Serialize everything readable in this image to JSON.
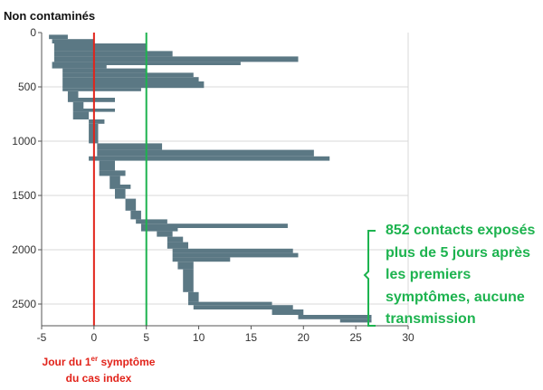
{
  "chart_data": {
    "type": "bar",
    "orientation": "horizontal-waterfall",
    "title": "",
    "ylabel": "Non contaminés",
    "xlabel_parts": [
      "Jour du 1",
      "er",
      " symptôme",
      "du cas index"
    ],
    "xlim": [
      -5,
      30
    ],
    "ylim": [
      0,
      2700
    ],
    "y_inverted": true,
    "xticks": [
      -5,
      0,
      5,
      10,
      15,
      20,
      25,
      30
    ],
    "yticks": [
      0,
      500,
      1000,
      1500,
      2000,
      2500
    ],
    "grid": "horizontal",
    "bar_color": "#5b7884",
    "reference_lines": [
      {
        "name": "index-symptom-day",
        "x": 0,
        "color": "#e2231a"
      },
      {
        "name": "five-day-threshold",
        "x": 5,
        "color": "#1db34f"
      }
    ],
    "bars": [
      {
        "y0": 20,
        "y1": 60,
        "x0": -4.3,
        "x1": -2.5
      },
      {
        "y0": 60,
        "y1": 100,
        "x0": -4.0,
        "x1": 0.0
      },
      {
        "y0": 100,
        "y1": 170,
        "x0": -3.8,
        "x1": 5.0
      },
      {
        "y0": 170,
        "y1": 220,
        "x0": -3.8,
        "x1": 7.5
      },
      {
        "y0": 220,
        "y1": 270,
        "x0": -3.8,
        "x1": 19.5
      },
      {
        "y0": 270,
        "y1": 300,
        "x0": -4.0,
        "x1": 14.0
      },
      {
        "y0": 300,
        "y1": 330,
        "x0": -4.0,
        "x1": 1.2
      },
      {
        "y0": 330,
        "y1": 370,
        "x0": -3.0,
        "x1": 5.0
      },
      {
        "y0": 370,
        "y1": 410,
        "x0": -3.0,
        "x1": 9.5
      },
      {
        "y0": 410,
        "y1": 450,
        "x0": -3.0,
        "x1": 10.0
      },
      {
        "y0": 450,
        "y1": 510,
        "x0": -3.0,
        "x1": 10.5
      },
      {
        "y0": 510,
        "y1": 540,
        "x0": -3.0,
        "x1": 4.5
      },
      {
        "y0": 540,
        "y1": 600,
        "x0": -2.5,
        "x1": -1.5
      },
      {
        "y0": 600,
        "y1": 640,
        "x0": -2.5,
        "x1": 2.0
      },
      {
        "y0": 640,
        "y1": 700,
        "x0": -2.0,
        "x1": -1.0
      },
      {
        "y0": 700,
        "y1": 730,
        "x0": -2.0,
        "x1": 2.0
      },
      {
        "y0": 730,
        "y1": 800,
        "x0": -2.0,
        "x1": -0.5
      },
      {
        "y0": 800,
        "y1": 840,
        "x0": -0.5,
        "x1": 1.0
      },
      {
        "y0": 840,
        "y1": 1020,
        "x0": -0.5,
        "x1": 0.4
      },
      {
        "y0": 1020,
        "y1": 1080,
        "x0": 0.3,
        "x1": 6.5
      },
      {
        "y0": 1080,
        "y1": 1140,
        "x0": 0.3,
        "x1": 21.0
      },
      {
        "y0": 1140,
        "y1": 1180,
        "x0": -0.5,
        "x1": 22.5
      },
      {
        "y0": 1180,
        "y1": 1270,
        "x0": 0.5,
        "x1": 2.0
      },
      {
        "y0": 1270,
        "y1": 1320,
        "x0": 0.5,
        "x1": 3.0
      },
      {
        "y0": 1320,
        "y1": 1400,
        "x0": 1.5,
        "x1": 2.5
      },
      {
        "y0": 1400,
        "y1": 1440,
        "x0": 1.5,
        "x1": 3.5
      },
      {
        "y0": 1440,
        "y1": 1530,
        "x0": 2.0,
        "x1": 3.0
      },
      {
        "y0": 1530,
        "y1": 1640,
        "x0": 3.0,
        "x1": 4.0
      },
      {
        "y0": 1640,
        "y1": 1720,
        "x0": 3.5,
        "x1": 4.5
      },
      {
        "y0": 1720,
        "y1": 1760,
        "x0": 4.0,
        "x1": 7.0
      },
      {
        "y0": 1760,
        "y1": 1800,
        "x0": 4.5,
        "x1": 18.5
      },
      {
        "y0": 1800,
        "y1": 1830,
        "x0": 4.5,
        "x1": 8.0
      },
      {
        "y0": 1830,
        "y1": 1880,
        "x0": 6.0,
        "x1": 7.5
      },
      {
        "y0": 1880,
        "y1": 1930,
        "x0": 7.0,
        "x1": 8.5
      },
      {
        "y0": 1930,
        "y1": 1990,
        "x0": 7.0,
        "x1": 9.0
      },
      {
        "y0": 1990,
        "y1": 2030,
        "x0": 7.5,
        "x1": 19.0
      },
      {
        "y0": 2030,
        "y1": 2070,
        "x0": 7.5,
        "x1": 19.5
      },
      {
        "y0": 2070,
        "y1": 2110,
        "x0": 7.5,
        "x1": 13.0
      },
      {
        "y0": 2110,
        "y1": 2180,
        "x0": 8.0,
        "x1": 9.5
      },
      {
        "y0": 2180,
        "y1": 2390,
        "x0": 8.5,
        "x1": 9.5
      },
      {
        "y0": 2390,
        "y1": 2480,
        "x0": 9.0,
        "x1": 10.0
      },
      {
        "y0": 2480,
        "y1": 2510,
        "x0": 9.0,
        "x1": 17.0
      },
      {
        "y0": 2510,
        "y1": 2550,
        "x0": 9.5,
        "x1": 19.0
      },
      {
        "y0": 2550,
        "y1": 2600,
        "x0": 17.0,
        "x1": 20.0
      },
      {
        "y0": 2600,
        "y1": 2640,
        "x0": 19.5,
        "x1": 26.5
      },
      {
        "y0": 2640,
        "y1": 2670,
        "x0": 23.5,
        "x1": 26.5
      }
    ]
  },
  "annotation": {
    "lines": [
      "852 contacts exposés",
      "plus de 5 jours après",
      "les premiers",
      "symptômes, aucune",
      "transmission"
    ],
    "color": "#1db34f"
  }
}
